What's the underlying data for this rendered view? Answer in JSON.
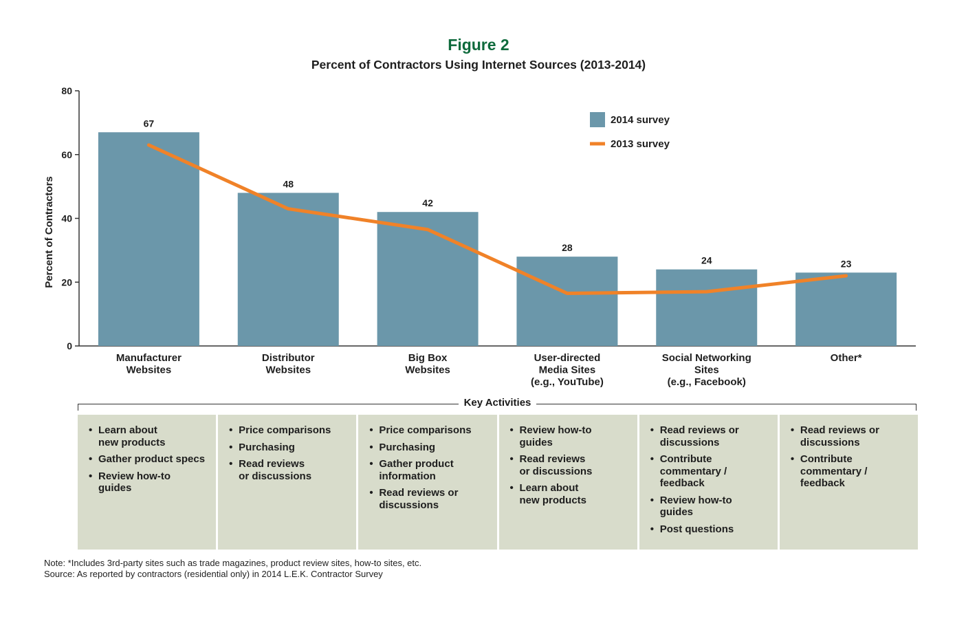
{
  "figure": {
    "title": "Figure 2",
    "subtitle": "Percent of Contractors Using Internet Sources (2013-2014)"
  },
  "chart_data": {
    "type": "bar",
    "categories": [
      "Manufacturer\nWebsites",
      "Distributor\nWebsites",
      "Big Box\nWebsites",
      "User-directed\nMedia Sites\n(e.g., YouTube)",
      "Social Networking\nSites\n(e.g., Facebook)",
      "Other*"
    ],
    "series": [
      {
        "name": "2014 survey",
        "type": "bar",
        "values": [
          67,
          48,
          42,
          28,
          24,
          23
        ],
        "color": "#6b97aa",
        "labels": [
          "67",
          "48",
          "42",
          "28",
          "24",
          "23"
        ]
      },
      {
        "name": "2013 survey",
        "type": "line",
        "values": [
          63,
          43,
          36.5,
          16.5,
          17,
          22
        ],
        "color": "#f08228"
      }
    ],
    "ylabel": "Percent of Contractors",
    "ylim": [
      0,
      80
    ],
    "yticks": [
      "0",
      "20",
      "40",
      "60",
      "80"
    ],
    "grid": false,
    "legend_position": "top-right"
  },
  "key_activities": {
    "title": "Key Activities",
    "columns": [
      [
        "Learn about\nnew products",
        "Gather product specs",
        "Review how-to\nguides"
      ],
      [
        "Price comparisons",
        "Purchasing",
        "Read reviews\nor discussions"
      ],
      [
        "Price comparisons",
        "Purchasing",
        "Gather product\ninformation",
        "Read reviews or\ndiscussions"
      ],
      [
        "Review how-to\nguides",
        "Read reviews\nor discussions",
        "Learn about\nnew products"
      ],
      [
        "Read reviews or\ndiscussions",
        "Contribute\ncommentary /\nfeedback",
        "Review how-to\nguides",
        "Post questions"
      ],
      [
        "Read reviews or\ndiscussions",
        "Contribute\ncommentary /\nfeedback"
      ]
    ]
  },
  "notes": {
    "note": "Note: *Includes 3rd-party sites such as trade magazines, product review sites, how-to sites, etc.",
    "source": "Source: As reported by contractors (residential only) in 2014 L.E.K. Contractor Survey"
  }
}
